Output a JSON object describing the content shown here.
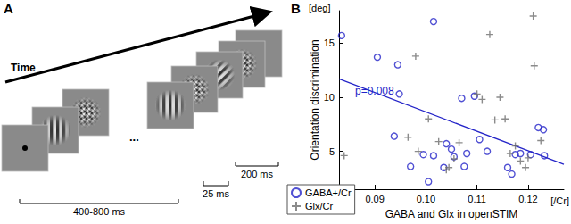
{
  "panel_a": {
    "label": "A",
    "arrow_label": "Time",
    "ellipsis": "...",
    "durations": [
      "400-800 ms",
      "25 ms",
      "200 ms"
    ]
  },
  "chart_data": {
    "type": "scatter",
    "title": "B",
    "xlabel": "GABA and Glx in openSTIM",
    "ylabel": "Orientation discrimination",
    "xunit": "[/Cr]",
    "yunit": "[deg]",
    "annotations": [
      "p=0.008"
    ],
    "xlim": [
      0.083,
      0.127
    ],
    "xticks": [
      0.09,
      {
        "value": 0.1,
        "label": "0.10"
      },
      0.11,
      0.12
    ],
    "ylim": [
      1.5,
      18
    ],
    "yticks": [
      5,
      10,
      15
    ],
    "grid": false,
    "legend": "lower left",
    "series": [
      {
        "name": "GABA+/Cr",
        "color": "#2424c8",
        "marker": "circle",
        "values": [
          [
            0.0835,
            15.7
          ],
          [
            0.0905,
            13.7
          ],
          [
            0.0945,
            13.0
          ],
          [
            0.0948,
            10.3
          ],
          [
            0.0938,
            6.4
          ],
          [
            0.1015,
            17.0
          ],
          [
            0.097,
            3.6
          ],
          [
            0.1005,
            2.2
          ],
          [
            0.0995,
            4.7
          ],
          [
            0.1015,
            4.6
          ],
          [
            0.1035,
            3.5
          ],
          [
            0.104,
            5.7
          ],
          [
            0.105,
            5.2
          ],
          [
            0.1055,
            4.5
          ],
          [
            0.107,
            9.9
          ],
          [
            0.1075,
            3.6
          ],
          [
            0.108,
            4.8
          ],
          [
            0.1095,
            10.1
          ],
          [
            0.1105,
            6.1
          ],
          [
            0.112,
            5.0
          ],
          [
            0.116,
            3.5
          ],
          [
            0.1168,
            2.9
          ],
          [
            0.1175,
            4.7
          ],
          [
            0.1185,
            4.8
          ],
          [
            0.1205,
            4.7
          ],
          [
            0.122,
            7.2
          ],
          [
            0.123,
            7.0
          ],
          [
            0.1232,
            4.6
          ]
        ],
        "fit": {
          "x": [
            0.083,
            0.127
          ],
          "y": [
            11.7,
            3.8
          ]
        }
      },
      {
        "name": "Glx/Cr",
        "color": "#6e6e6e",
        "marker": "plus",
        "values": [
          [
            0.084,
            4.6
          ],
          [
            0.0965,
            6.3
          ],
          [
            0.098,
            13.8
          ],
          [
            0.0985,
            5.0
          ],
          [
            0.1005,
            8.0
          ],
          [
            0.1025,
            5.9
          ],
          [
            0.104,
            3.3
          ],
          [
            0.1045,
            3.5
          ],
          [
            0.1055,
            4.3
          ],
          [
            0.1065,
            5.8
          ],
          [
            0.11,
            10.3
          ],
          [
            0.111,
            9.8
          ],
          [
            0.1125,
            15.8
          ],
          [
            0.1135,
            7.9
          ],
          [
            0.1145,
            10.0
          ],
          [
            0.1155,
            8.0
          ],
          [
            0.1165,
            4.8
          ],
          [
            0.1175,
            5.5
          ],
          [
            0.1185,
            4.1
          ],
          [
            0.1195,
            3.5
          ],
          [
            0.12,
            4.4
          ],
          [
            0.121,
            17.5
          ],
          [
            0.1212,
            12.9
          ],
          [
            0.1225,
            6.0
          ]
        ]
      }
    ]
  }
}
